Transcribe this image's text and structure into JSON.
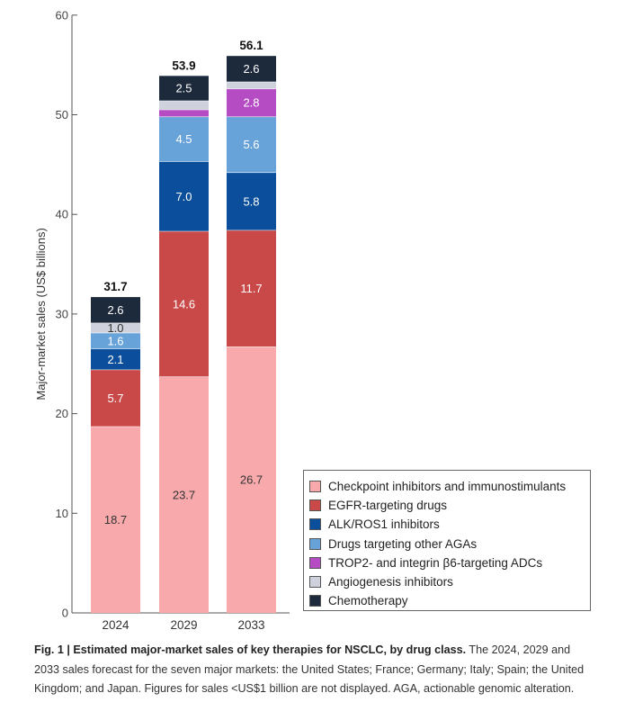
{
  "chart_data": {
    "type": "stacked-bar",
    "title": "",
    "xlabel": "",
    "ylabel": "Major-market sales (US$ billions)",
    "ylim": [
      0,
      60
    ],
    "yticks": [
      0,
      10,
      20,
      30,
      40,
      50,
      60
    ],
    "categories": [
      "2024",
      "2029",
      "2033"
    ],
    "totals": [
      "31.7",
      "53.9",
      "56.1"
    ],
    "series": [
      {
        "name": "Checkpoint inhibitors and immunostimulants",
        "color": "#f7a9ab",
        "label_color": "#333333",
        "values": [
          18.7,
          23.7,
          26.7
        ],
        "labels": [
          "18.7",
          "23.7",
          "26.7"
        ]
      },
      {
        "name": "EGFR-targeting drugs",
        "color": "#c94848",
        "label_color": "#ffffff",
        "values": [
          5.7,
          14.6,
          11.7
        ],
        "labels": [
          "5.7",
          "14.6",
          "11.7"
        ]
      },
      {
        "name": "ALK/ROS1 inhibitors",
        "color": "#0b4f9c",
        "label_color": "#ffffff",
        "values": [
          2.1,
          7.0,
          5.8
        ],
        "labels": [
          "2.1",
          "7.0",
          "5.8"
        ]
      },
      {
        "name": "Drugs targeting other AGAs",
        "color": "#67a3d9",
        "label_color": "#ffffff",
        "values": [
          1.6,
          4.5,
          5.6
        ],
        "labels": [
          "1.6",
          "4.5",
          "5.6"
        ]
      },
      {
        "name": "TROP2- and integrin β6-targeting ADCs",
        "color": "#b64cc4",
        "label_color": "#ffffff",
        "values": [
          0.0,
          0.7,
          2.8
        ],
        "labels": [
          "",
          "",
          "2.8"
        ]
      },
      {
        "name": "Angiogenesis inhibitors",
        "color": "#cfd2dc",
        "label_color": "#333333",
        "values": [
          1.0,
          0.9,
          0.7
        ],
        "labels": [
          "1.0",
          "",
          ""
        ]
      },
      {
        "name": "Chemotherapy",
        "color": "#1d2a3c",
        "label_color": "#ffffff",
        "values": [
          2.6,
          2.5,
          2.6
        ],
        "labels": [
          "2.6",
          "2.5",
          "2.6"
        ]
      }
    ]
  },
  "caption": {
    "bold": "Fig. 1 | Estimated major-market sales of key therapies for NSCLC, by drug class.",
    "text": " The 2024, 2029 and 2033 sales forecast for the seven major markets: the United States; France; Germany; Italy; Spain; the United Kingdom; and Japan. Figures for sales <US$1 billion are not displayed. AGA, actionable genomic alteration."
  }
}
